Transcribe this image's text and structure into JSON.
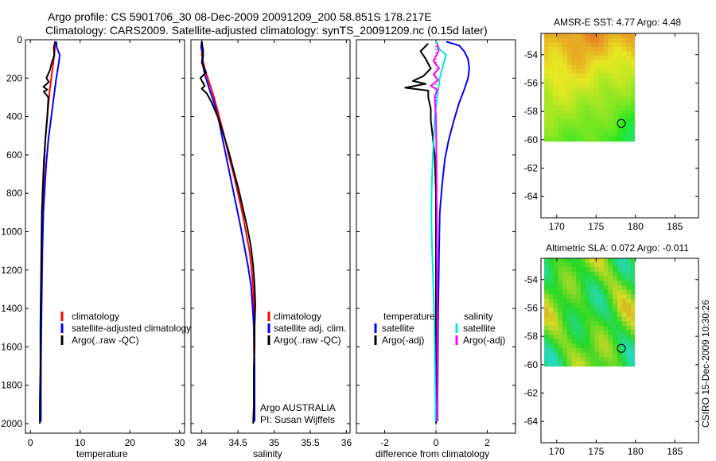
{
  "header": {
    "line1": "Argo profile: CS 5901706_30 08-Dec-2009 20091209_200 58.851S 178.217E",
    "line2": "Climatology: CARS2009. Satellite-adjusted climatology: synTS_20091209.nc (0.15d later)"
  },
  "footer": {
    "stamp": "CSIRO 15-Dec-2009 10:30:26"
  },
  "chart_data": [
    {
      "type": "line",
      "xlabel": "temperature",
      "xlim": [
        -1,
        31
      ],
      "ylim": [
        0,
        2050
      ],
      "xticks": [
        0,
        10,
        20,
        30
      ],
      "yticks": [
        0,
        200,
        400,
        600,
        800,
        1000,
        1200,
        1400,
        1600,
        1800,
        2000
      ],
      "legend": [
        "climatology",
        "satellite-adjusted climatology",
        "Argo(..raw -QC)"
      ],
      "series": [
        {
          "name": "climatology",
          "color": "#ff0000",
          "points": [
            [
              5.0,
              10
            ],
            [
              4.9,
              50
            ],
            [
              4.6,
              120
            ],
            [
              4.3,
              180
            ],
            [
              3.9,
              260
            ],
            [
              3.6,
              340
            ],
            [
              3.3,
              420
            ],
            [
              3.0,
              520
            ],
            [
              2.8,
              640
            ],
            [
              2.6,
              760
            ],
            [
              2.4,
              900
            ],
            [
              2.3,
              1100
            ],
            [
              2.2,
              1300
            ],
            [
              2.1,
              1500
            ],
            [
              2.1,
              1700
            ],
            [
              2.0,
              1900
            ],
            [
              2.0,
              1990
            ]
          ]
        },
        {
          "name": "satellite-adjusted climatology",
          "color": "#0000ff",
          "points": [
            [
              5.2,
              10
            ],
            [
              5.3,
              40
            ],
            [
              5.9,
              80
            ],
            [
              5.7,
              120
            ],
            [
              5.2,
              200
            ],
            [
              4.7,
              300
            ],
            [
              4.2,
              400
            ],
            [
              3.6,
              520
            ],
            [
              3.2,
              640
            ],
            [
              2.9,
              760
            ],
            [
              2.6,
              900
            ],
            [
              2.4,
              1100
            ],
            [
              2.3,
              1300
            ],
            [
              2.2,
              1500
            ],
            [
              2.1,
              1700
            ],
            [
              2.1,
              1900
            ],
            [
              2.1,
              1990
            ]
          ]
        },
        {
          "name": "Argo(..raw -QC)",
          "color": "#000000",
          "points": [
            [
              5.0,
              8
            ],
            [
              4.7,
              40
            ],
            [
              4.8,
              80
            ],
            [
              4.3,
              120
            ],
            [
              3.9,
              160
            ],
            [
              3.2,
              200
            ],
            [
              3.7,
              220
            ],
            [
              2.6,
              245
            ],
            [
              3.4,
              260
            ],
            [
              2.7,
              270
            ],
            [
              3.6,
              300
            ],
            [
              3.4,
              400
            ],
            [
              3.0,
              520
            ],
            [
              2.7,
              640
            ],
            [
              2.5,
              760
            ],
            [
              2.3,
              900
            ],
            [
              2.2,
              1100
            ],
            [
              2.1,
              1300
            ],
            [
              2.0,
              1500
            ],
            [
              2.0,
              1700
            ],
            [
              1.9,
              1900
            ],
            [
              1.9,
              2000
            ]
          ]
        }
      ]
    },
    {
      "type": "line",
      "xlabel": "salinity",
      "xlim": [
        33.85,
        36.05
      ],
      "ylim": [
        0,
        2050
      ],
      "xticks": [
        34,
        34.5,
        35,
        35.5,
        36
      ],
      "yticks": [
        0,
        200,
        400,
        600,
        800,
        1000,
        1200,
        1400,
        1600,
        1800,
        2000
      ],
      "legend": [
        "climatology",
        "satellite adj. clim.",
        "Argo(..raw -QC)"
      ],
      "annotations": [
        "Argo AUSTRALIA",
        "PI: Susan Wijffels"
      ],
      "series": [
        {
          "name": "climatology",
          "color": "#ff0000",
          "points": [
            [
              34.0,
              10
            ],
            [
              34.0,
              80
            ],
            [
              34.04,
              150
            ],
            [
              34.1,
              220
            ],
            [
              34.17,
              300
            ],
            [
              34.24,
              400
            ],
            [
              34.31,
              500
            ],
            [
              34.37,
              600
            ],
            [
              34.44,
              700
            ],
            [
              34.5,
              800
            ],
            [
              34.56,
              900
            ],
            [
              34.61,
              1000
            ],
            [
              34.66,
              1100
            ],
            [
              34.69,
              1200
            ],
            [
              34.71,
              1300
            ],
            [
              34.72,
              1400
            ],
            [
              34.72,
              1600
            ],
            [
              34.73,
              1800
            ],
            [
              34.73,
              1990
            ]
          ]
        },
        {
          "name": "satellite adj. clim.",
          "color": "#0000ff",
          "points": [
            [
              34.0,
              10
            ],
            [
              33.99,
              40
            ],
            [
              34.02,
              80
            ],
            [
              34.01,
              120
            ],
            [
              34.04,
              180
            ],
            [
              34.1,
              250
            ],
            [
              34.17,
              330
            ],
            [
              34.24,
              430
            ],
            [
              34.3,
              540
            ],
            [
              34.36,
              650
            ],
            [
              34.42,
              760
            ],
            [
              34.48,
              870
            ],
            [
              34.54,
              980
            ],
            [
              34.59,
              1080
            ],
            [
              34.64,
              1180
            ],
            [
              34.68,
              1280
            ],
            [
              34.7,
              1380
            ],
            [
              34.72,
              1500
            ],
            [
              34.73,
              1700
            ],
            [
              34.73,
              1850
            ],
            [
              34.73,
              1990
            ]
          ]
        },
        {
          "name": "Argo(..raw -QC)",
          "color": "#000000",
          "points": [
            [
              34.0,
              8
            ],
            [
              34.02,
              60
            ],
            [
              34.0,
              120
            ],
            [
              34.06,
              170
            ],
            [
              33.98,
              200
            ],
            [
              34.04,
              240
            ],
            [
              34.0,
              255
            ],
            [
              34.07,
              280
            ],
            [
              34.14,
              330
            ],
            [
              34.22,
              400
            ],
            [
              34.29,
              480
            ],
            [
              34.37,
              580
            ],
            [
              34.44,
              680
            ],
            [
              34.51,
              780
            ],
            [
              34.57,
              880
            ],
            [
              34.63,
              980
            ],
            [
              34.68,
              1080
            ],
            [
              34.71,
              1180
            ],
            [
              34.73,
              1280
            ],
            [
              34.74,
              1380
            ],
            [
              34.73,
              1500
            ],
            [
              34.73,
              1600
            ],
            [
              34.72,
              1700
            ],
            [
              34.72,
              1800
            ],
            [
              34.72,
              1900
            ],
            [
              34.71,
              2000
            ]
          ]
        }
      ]
    },
    {
      "type": "line",
      "xlabel": "difference from climatology",
      "xlim": [
        -3.1,
        3.1
      ],
      "ylim": [
        0,
        2050
      ],
      "xticks": [
        -2,
        0,
        2
      ],
      "yticks": [
        0,
        200,
        400,
        600,
        800,
        1000,
        1200,
        1400,
        1600,
        1800,
        2000
      ],
      "legend": [
        "temperature",
        "satellite",
        "Argo(-adj)",
        "salinity",
        "satellite",
        "Argo(-adj)"
      ],
      "series": [
        {
          "name": "satellite",
          "group": "temperature",
          "color": "#0000ff",
          "points": [
            [
              0.4,
              10
            ],
            [
              0.9,
              30
            ],
            [
              1.1,
              60
            ],
            [
              1.25,
              100
            ],
            [
              1.3,
              150
            ],
            [
              1.25,
              200
            ],
            [
              1.1,
              260
            ],
            [
              0.9,
              330
            ],
            [
              0.7,
              420
            ],
            [
              0.5,
              520
            ],
            [
              0.35,
              620
            ],
            [
              0.25,
              740
            ],
            [
              0.15,
              900
            ],
            [
              0.12,
              1100
            ],
            [
              0.1,
              1300
            ],
            [
              0.08,
              1500
            ],
            [
              0.07,
              1700
            ],
            [
              0.06,
              1900
            ],
            [
              0.06,
              1990
            ]
          ]
        },
        {
          "name": "Argo(-adj)",
          "group": "temperature",
          "color": "#000000",
          "points": [
            [
              -0.3,
              20
            ],
            [
              -0.6,
              60
            ],
            [
              -0.4,
              100
            ],
            [
              -0.2,
              150
            ],
            [
              -0.5,
              190
            ],
            [
              -0.9,
              215
            ],
            [
              -0.4,
              230
            ],
            [
              -1.2,
              250
            ],
            [
              -0.3,
              265
            ],
            [
              -0.3,
              300
            ],
            [
              -0.2,
              360
            ],
            [
              -0.2,
              420
            ],
            [
              -0.15,
              480
            ],
            [
              -0.05,
              600
            ],
            [
              0.0,
              800
            ],
            [
              0.0,
              1000
            ],
            [
              0.0,
              1200
            ],
            [
              0.0,
              1400
            ],
            [
              0.0,
              1600
            ],
            [
              0.0,
              1800
            ],
            [
              0.0,
              2000
            ]
          ]
        },
        {
          "name": "satellite",
          "group": "salinity",
          "color": "#00e5e5",
          "points": [
            [
              0.0,
              10
            ],
            [
              0.15,
              50
            ],
            [
              0.4,
              80
            ],
            [
              0.3,
              120
            ],
            [
              0.15,
              200
            ],
            [
              0.05,
              300
            ],
            [
              -0.05,
              400
            ],
            [
              -0.08,
              500
            ],
            [
              -0.12,
              600
            ],
            [
              -0.15,
              700
            ],
            [
              -0.17,
              800
            ],
            [
              -0.18,
              900
            ],
            [
              -0.17,
              1000
            ],
            [
              -0.15,
              1100
            ],
            [
              -0.12,
              1200
            ],
            [
              -0.1,
              1300
            ],
            [
              -0.08,
              1400
            ],
            [
              -0.06,
              1500
            ],
            [
              -0.05,
              1600
            ],
            [
              -0.04,
              1700
            ],
            [
              -0.03,
              1800
            ],
            [
              -0.02,
              1900
            ],
            [
              -0.02,
              1990
            ]
          ]
        },
        {
          "name": "Argo(-adj)",
          "group": "salinity",
          "color": "#ff00ff",
          "points": [
            [
              0.05,
              20
            ],
            [
              0.1,
              60
            ],
            [
              -0.1,
              110
            ],
            [
              0.12,
              150
            ],
            [
              -0.1,
              180
            ],
            [
              0.08,
              210
            ],
            [
              -0.2,
              240
            ],
            [
              0.05,
              260
            ],
            [
              -0.05,
              300
            ],
            [
              0.0,
              400
            ],
            [
              0.02,
              600
            ],
            [
              0.03,
              800
            ],
            [
              0.04,
              1000
            ],
            [
              0.04,
              1200
            ],
            [
              0.05,
              1400
            ],
            [
              0.05,
              1600
            ],
            [
              0.05,
              1800
            ],
            [
              0.05,
              1990
            ]
          ]
        }
      ]
    },
    {
      "type": "heatmap",
      "title": "AMSR-E SST: 4.77 Argo: 4.48",
      "xlim": [
        168,
        188
      ],
      "ylim": [
        -65.5,
        -52.5
      ],
      "xticks": [
        170,
        175,
        180,
        185
      ],
      "yticks": [
        -54,
        -56,
        -58,
        -60,
        -62,
        -64
      ],
      "data_extent": {
        "lon": [
          168.4,
          180
        ],
        "lat": [
          -60.1,
          -52.5
        ]
      },
      "marker": [
        178.2,
        -58.85
      ]
    },
    {
      "type": "heatmap",
      "title": "Altimetric SLA: 0.072 Argo: -0.011",
      "xlim": [
        168,
        188
      ],
      "ylim": [
        -65.5,
        -52.5
      ],
      "xticks": [
        170,
        175,
        180,
        185
      ],
      "yticks": [
        -54,
        -56,
        -58,
        -60,
        -62,
        -64
      ],
      "data_extent": {
        "lon": [
          168.4,
          180
        ],
        "lat": [
          -60.1,
          -52.5
        ]
      },
      "marker": [
        178.2,
        -58.85
      ]
    }
  ]
}
